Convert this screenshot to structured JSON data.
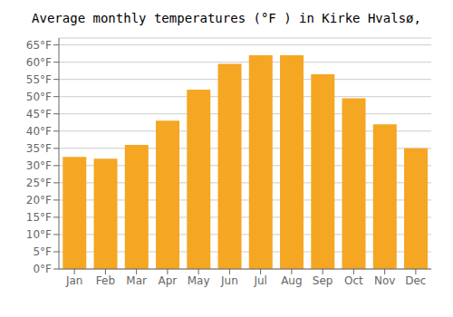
{
  "chart_data": {
    "type": "bar",
    "title": "Average monthly temperatures (°F ) in Kirke Hvalsø,",
    "categories": [
      "Jan",
      "Feb",
      "Mar",
      "Apr",
      "May",
      "Jun",
      "Jul",
      "Aug",
      "Sep",
      "Oct",
      "Nov",
      "Dec"
    ],
    "values": [
      32.5,
      32.0,
      36.0,
      43.0,
      52.0,
      59.5,
      62.0,
      62.0,
      56.5,
      49.5,
      42.0,
      35.0
    ],
    "color": "#F5A623",
    "ylim": [
      0,
      67
    ],
    "yticks": [
      {
        "value": 0,
        "label": "0°F"
      },
      {
        "value": 5,
        "label": "5°F"
      },
      {
        "value": 10,
        "label": "10°F"
      },
      {
        "value": 15,
        "label": "15°F"
      },
      {
        "value": 20,
        "label": "20°F"
      },
      {
        "value": 25,
        "label": "25°F"
      },
      {
        "value": 30,
        "label": "30°F"
      },
      {
        "value": 35,
        "label": "35°F"
      },
      {
        "value": 40,
        "label": "40°F"
      },
      {
        "value": 45,
        "label": "45°F"
      },
      {
        "value": 50,
        "label": "50°F"
      },
      {
        "value": 55,
        "label": "55°F"
      },
      {
        "value": 60,
        "label": "60°F"
      },
      {
        "value": 65,
        "label": "65°F"
      }
    ],
    "grid": true
  }
}
